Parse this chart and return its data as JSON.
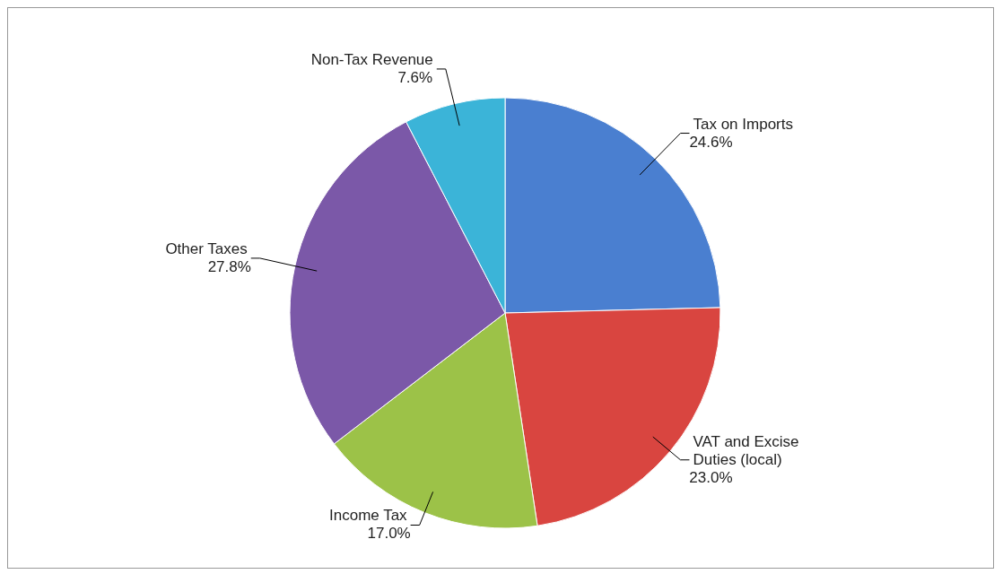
{
  "chart_data": {
    "type": "pie",
    "categories": [
      "Tax on Imports",
      "VAT and Excise Duties (local)",
      "Income Tax",
      "Other Taxes",
      "Non-Tax Revenue"
    ],
    "values": [
      24.6,
      23.0,
      17.0,
      27.8,
      7.6
    ],
    "value_labels": [
      "24.6%",
      "23.0%",
      "17.0%",
      "27.8%",
      "7.6%"
    ],
    "colors": [
      "#4a7fd0",
      "#d94540",
      "#9cc248",
      "#7b58a8",
      "#3bb4d8"
    ],
    "legend": false
  }
}
